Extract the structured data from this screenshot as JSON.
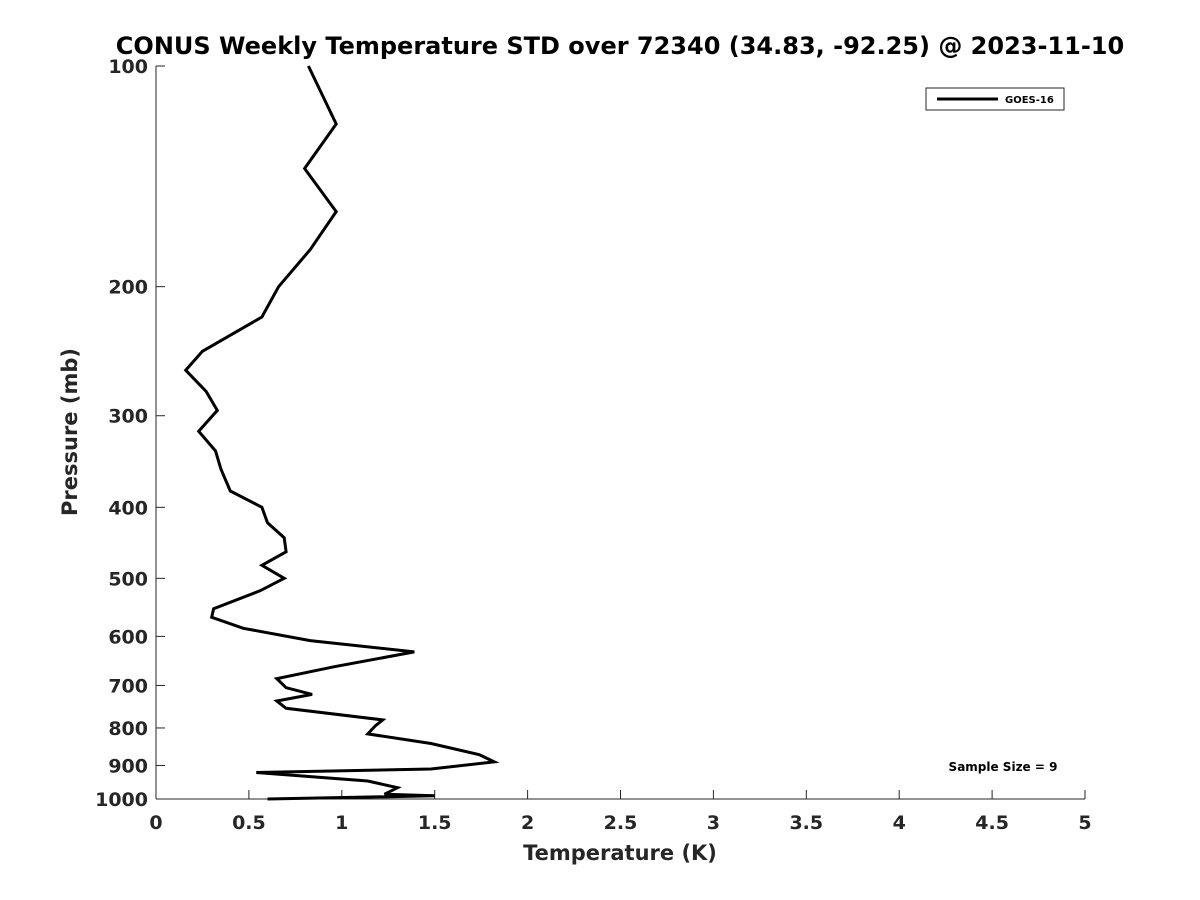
{
  "chart_data": {
    "type": "line",
    "title": "CONUS Weekly Temperature STD over 72340 (34.83, -92.25) @ 2023-11-10",
    "xlabel": "Temperature (K)",
    "ylabel": "Pressure (mb)",
    "xlim": [
      0,
      5
    ],
    "ylim": [
      1000,
      100
    ],
    "yscale": "log",
    "xticks": [
      "0",
      "0.5",
      "1",
      "1.5",
      "2",
      "2.5",
      "3",
      "3.5",
      "4",
      "4.5",
      "5"
    ],
    "yticks": [
      "100",
      "200",
      "300",
      "400",
      "500",
      "600",
      "700",
      "800",
      "900",
      "1000"
    ],
    "grid": false,
    "legend_position": "top-right",
    "annotation": "Sample Size = 9",
    "series": [
      {
        "name": "GOES-16",
        "color": "#000000",
        "temperature": [
          0.82,
          0.97,
          0.8,
          0.97,
          0.83,
          0.66,
          0.57,
          0.25,
          0.16,
          0.27,
          0.33,
          0.23,
          0.32,
          0.35,
          0.4,
          0.57,
          0.6,
          0.69,
          0.7,
          0.57,
          0.69,
          0.56,
          0.31,
          0.3,
          0.47,
          0.83,
          1.39,
          0.96,
          0.65,
          0.7,
          0.84,
          0.65,
          0.7,
          1.22,
          1.18,
          1.14,
          1.48,
          1.74,
          1.82,
          1.48,
          0.54,
          1.14,
          1.3,
          1.23,
          1.5,
          0.6
        ],
        "pressure": [
          100,
          120,
          138,
          158,
          178,
          200,
          220,
          245,
          260,
          278,
          295,
          315,
          335,
          355,
          380,
          400,
          420,
          440,
          460,
          480,
          500,
          520,
          550,
          565,
          585,
          608,
          630,
          660,
          685,
          705,
          720,
          735,
          752,
          780,
          795,
          815,
          840,
          870,
          890,
          910,
          920,
          945,
          965,
          985,
          990,
          1000
        ]
      }
    ]
  }
}
